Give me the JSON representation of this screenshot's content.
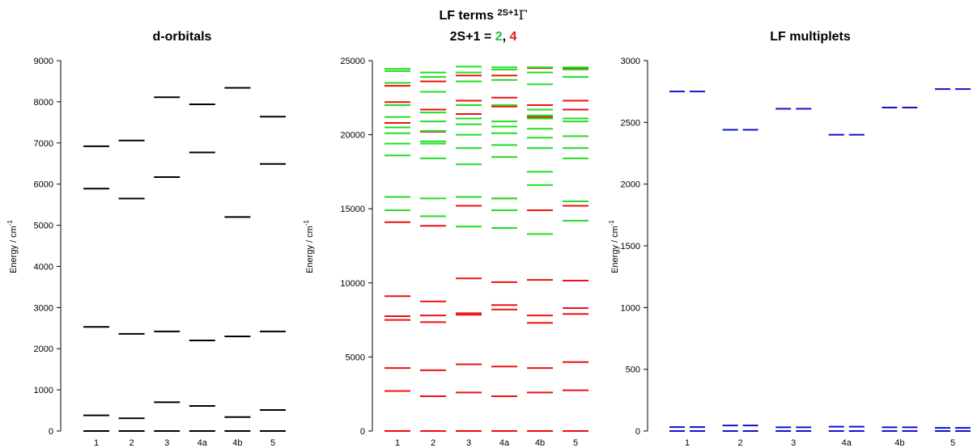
{
  "colors": {
    "axis": "#000000",
    "d_orbital": "#000000",
    "doublet": "#22dd22",
    "quartet": "#ee1111",
    "multiplet": "#1111cc"
  },
  "chart_data": [
    {
      "type": "energy-levels",
      "title": "d-orbitals",
      "ylabel": "Energy / cm",
      "ylabel_sup": "-1",
      "ylim": [
        0,
        9000
      ],
      "yticks": [
        0,
        1000,
        2000,
        3000,
        4000,
        5000,
        6000,
        7000,
        8000,
        9000
      ],
      "categories": [
        "1",
        "2",
        "3",
        "4a",
        "4b",
        "5"
      ],
      "series": [
        {
          "color": "d_orbital",
          "levels": [
            [
              0,
              380,
              2530,
              5890,
              6920
            ],
            [
              0,
              310,
              2360,
              5650,
              7060
            ],
            [
              0,
              700,
              2420,
              6170,
              8110
            ],
            [
              0,
              610,
              2200,
              6770,
              7940
            ],
            [
              0,
              340,
              2300,
              5200,
              8340
            ],
            [
              0,
              510,
              2420,
              6490,
              7640
            ]
          ]
        }
      ]
    },
    {
      "type": "energy-levels",
      "title_main": "LF terms ",
      "title_sup": "2S+1",
      "title_gamma": "Γ",
      "title_line2_prefix": "2S+1 = ",
      "title_doublet": "2",
      "title_sep": ", ",
      "title_quartet": "4",
      "ylabel": "Energy / cm",
      "ylabel_sup": "-1",
      "ylim": [
        0,
        25000
      ],
      "yticks": [
        0,
        5000,
        10000,
        15000,
        20000,
        25000
      ],
      "categories": [
        "1",
        "2",
        "3",
        "4a",
        "4b",
        "5"
      ],
      "series": [
        {
          "color": "quartet",
          "levels": [
            [
              0,
              2700,
              4250,
              7500,
              7750,
              9100,
              14100,
              20800,
              22200,
              23300
            ],
            [
              0,
              2350,
              4100,
              7350,
              7800,
              8750,
              13850,
              20200,
              21700,
              23600
            ],
            [
              0,
              2600,
              4500,
              7850,
              7950,
              10300,
              15200,
              21400,
              22300,
              24000
            ],
            [
              0,
              2350,
              4350,
              8200,
              8500,
              10050,
              15700,
              21900,
              22500,
              24000
            ],
            [
              0,
              2600,
              4250,
              7300,
              7800,
              10200,
              14900,
              21200,
              22000,
              24500
            ],
            [
              0,
              2750,
              4650,
              7900,
              8300,
              10150,
              15200,
              21700,
              22300,
              24500
            ]
          ]
        },
        {
          "color": "doublet",
          "levels": [
            [
              14900,
              15800,
              18600,
              19400,
              20100,
              20500,
              21200,
              22000,
              23500,
              24300,
              24450
            ],
            [
              14500,
              15700,
              18400,
              19400,
              19550,
              20250,
              20900,
              21500,
              22900,
              23900,
              24200
            ],
            [
              13800,
              15800,
              18000,
              19100,
              20000,
              20700,
              21100,
              22000,
              23600,
              24200,
              24600
            ],
            [
              13700,
              14900,
              15700,
              18500,
              19300,
              20100,
              20550,
              20900,
              22000,
              23700,
              24400,
              24550
            ],
            [
              13300,
              16600,
              17500,
              19100,
              19800,
              20400,
              21100,
              21300,
              21700,
              23400,
              24200,
              24550
            ],
            [
              14200,
              15500,
              18400,
              19100,
              19900,
              20900,
              21100,
              23900,
              24400,
              24550
            ]
          ]
        }
      ]
    },
    {
      "type": "energy-levels",
      "title": "LF multiplets",
      "ylabel": "Energy / cm",
      "ylabel_sup": "-1",
      "ylim": [
        0,
        3000
      ],
      "yticks": [
        0,
        500,
        1000,
        1500,
        2000,
        2500,
        3000
      ],
      "categories": [
        "1",
        "2",
        "3",
        "4a",
        "4b",
        "5"
      ],
      "series": [
        {
          "color": "multiplet",
          "levels": [
            [
              0,
              32,
              2750
            ],
            [
              0,
              45,
              2440
            ],
            [
              0,
              30,
              2610
            ],
            [
              0,
              35,
              2400
            ],
            [
              0,
              30,
              2620
            ],
            [
              0,
              25,
              2770
            ]
          ]
        }
      ]
    }
  ]
}
